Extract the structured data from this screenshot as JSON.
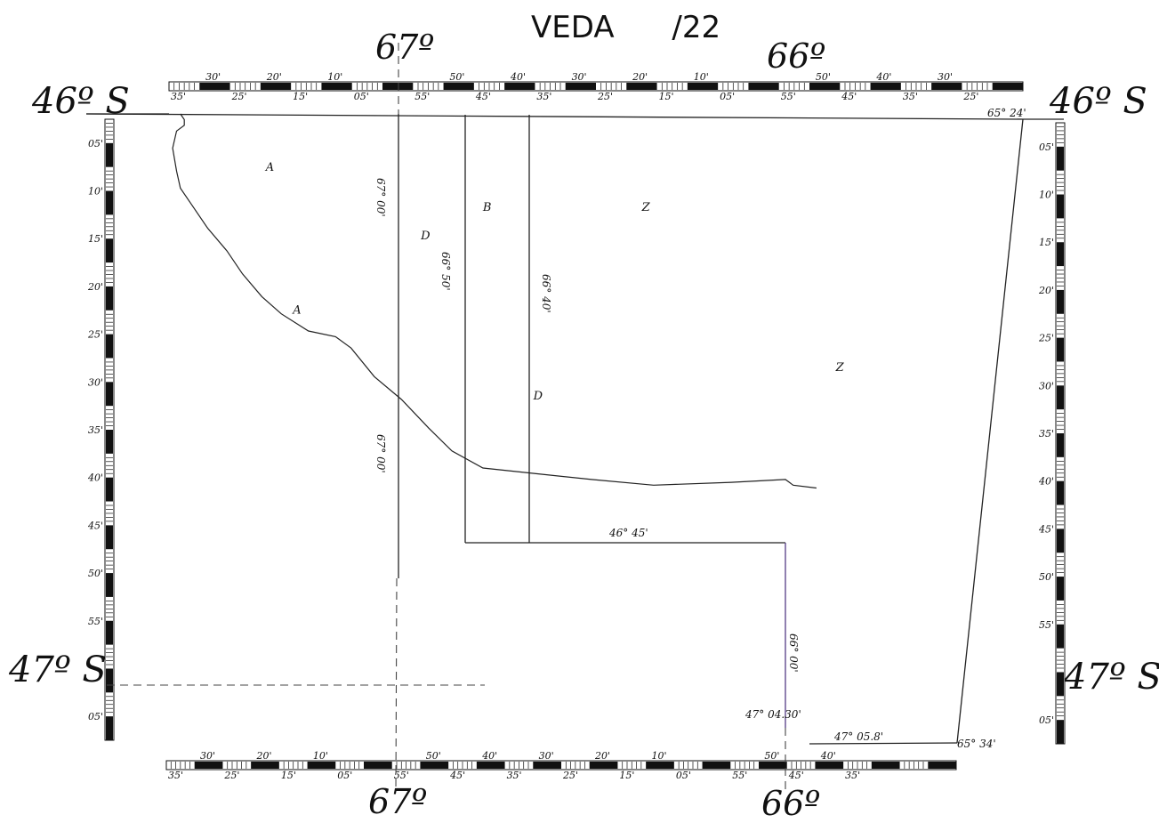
{
  "title": "VEDA      /22",
  "lat_labels": {
    "north": "46º S",
    "south": "47º S"
  },
  "lon_labels": {
    "west": "67º",
    "east": "66º"
  },
  "top_scale_major": [
    "30'",
    "20'",
    "10'",
    "",
    "50'",
    "40'",
    "30'",
    "20'",
    "10'",
    "",
    "50'",
    "40'",
    "30'"
  ],
  "top_scale_minor": [
    "35'",
    "25'",
    "15'",
    "05'",
    "55'",
    "45'",
    "35'",
    "25'",
    "15'",
    "05'",
    "55'",
    "45'",
    "35'",
    "25'"
  ],
  "bottom_scale_major": [
    "30'",
    "20'",
    "10'",
    "",
    "50'",
    "40'",
    "30'",
    "20'",
    "10'",
    "",
    "50'",
    "40'"
  ],
  "bottom_scale_minor": [
    "35'",
    "25'",
    "15'",
    "05'",
    "55'",
    "45'",
    "35'",
    "25'",
    "15'",
    "05'",
    "55'",
    "45'",
    "35'"
  ],
  "left_scale": [
    "05'",
    "10'",
    "15'",
    "20'",
    "25'",
    "30'",
    "35'",
    "40'",
    "45'",
    "50'",
    "55'",
    "",
    "05'"
  ],
  "right_scale": [
    "05'",
    "10'",
    "15'",
    "20'",
    "25'",
    "30'",
    "35'",
    "40'",
    "45'",
    "50'",
    "55'",
    "",
    "05'"
  ],
  "boundary_labels": {
    "lon_67_00_upper": "67° 00'",
    "lon_67_00_lower": "67° 00'",
    "lon_66_50": "66° 50'",
    "lon_66_40": "66° 40'",
    "lat_46_45": "46° 45'",
    "lon_66_00": "66° 00'",
    "lat_47_04": "47° 04.30'",
    "lat_47_05": "47° 05.8'",
    "corner_ne": "65° 24'",
    "corner_se": "65° 34'"
  },
  "zones": [
    {
      "id": "A",
      "label": "A",
      "x": -67.34,
      "y": -46.1
    },
    {
      "id": "A2",
      "label": "A",
      "x": -67.27,
      "y": -46.35
    },
    {
      "id": "D",
      "label": "D",
      "x": -66.94,
      "y": -46.22
    },
    {
      "id": "B",
      "label": "B",
      "x": -66.78,
      "y": -46.17
    },
    {
      "id": "Z",
      "label": "Z",
      "x": -66.37,
      "y": -46.17
    },
    {
      "id": "Z2",
      "label": "Z",
      "x": -65.87,
      "y": -46.45
    },
    {
      "id": "D2",
      "label": "D",
      "x": -66.65,
      "y": -46.5
    }
  ],
  "coastline": [
    [
      -67.56,
      -46.0
    ],
    [
      -67.55,
      -46.01
    ],
    [
      -67.55,
      -46.02
    ],
    [
      -67.57,
      -46.03
    ],
    [
      -67.58,
      -46.06
    ],
    [
      -67.57,
      -46.1
    ],
    [
      -67.56,
      -46.13
    ],
    [
      -67.53,
      -46.16
    ],
    [
      -67.49,
      -46.2
    ],
    [
      -67.44,
      -46.24
    ],
    [
      -67.4,
      -46.28
    ],
    [
      -67.35,
      -46.32
    ],
    [
      -67.3,
      -46.35
    ],
    [
      -67.23,
      -46.38
    ],
    [
      -67.16,
      -46.39
    ],
    [
      -67.12,
      -46.41
    ],
    [
      -67.06,
      -46.46
    ],
    [
      -66.99,
      -46.5
    ],
    [
      -66.92,
      -46.55
    ],
    [
      -66.86,
      -46.59
    ],
    [
      -66.78,
      -46.62
    ],
    [
      -66.64,
      -46.63
    ],
    [
      -66.5,
      -46.64
    ],
    [
      -66.34,
      -46.65
    ],
    [
      -66.14,
      -46.645
    ],
    [
      -66.0,
      -46.64
    ],
    [
      -65.98,
      -46.65
    ],
    [
      -65.92,
      -46.655
    ]
  ]
}
